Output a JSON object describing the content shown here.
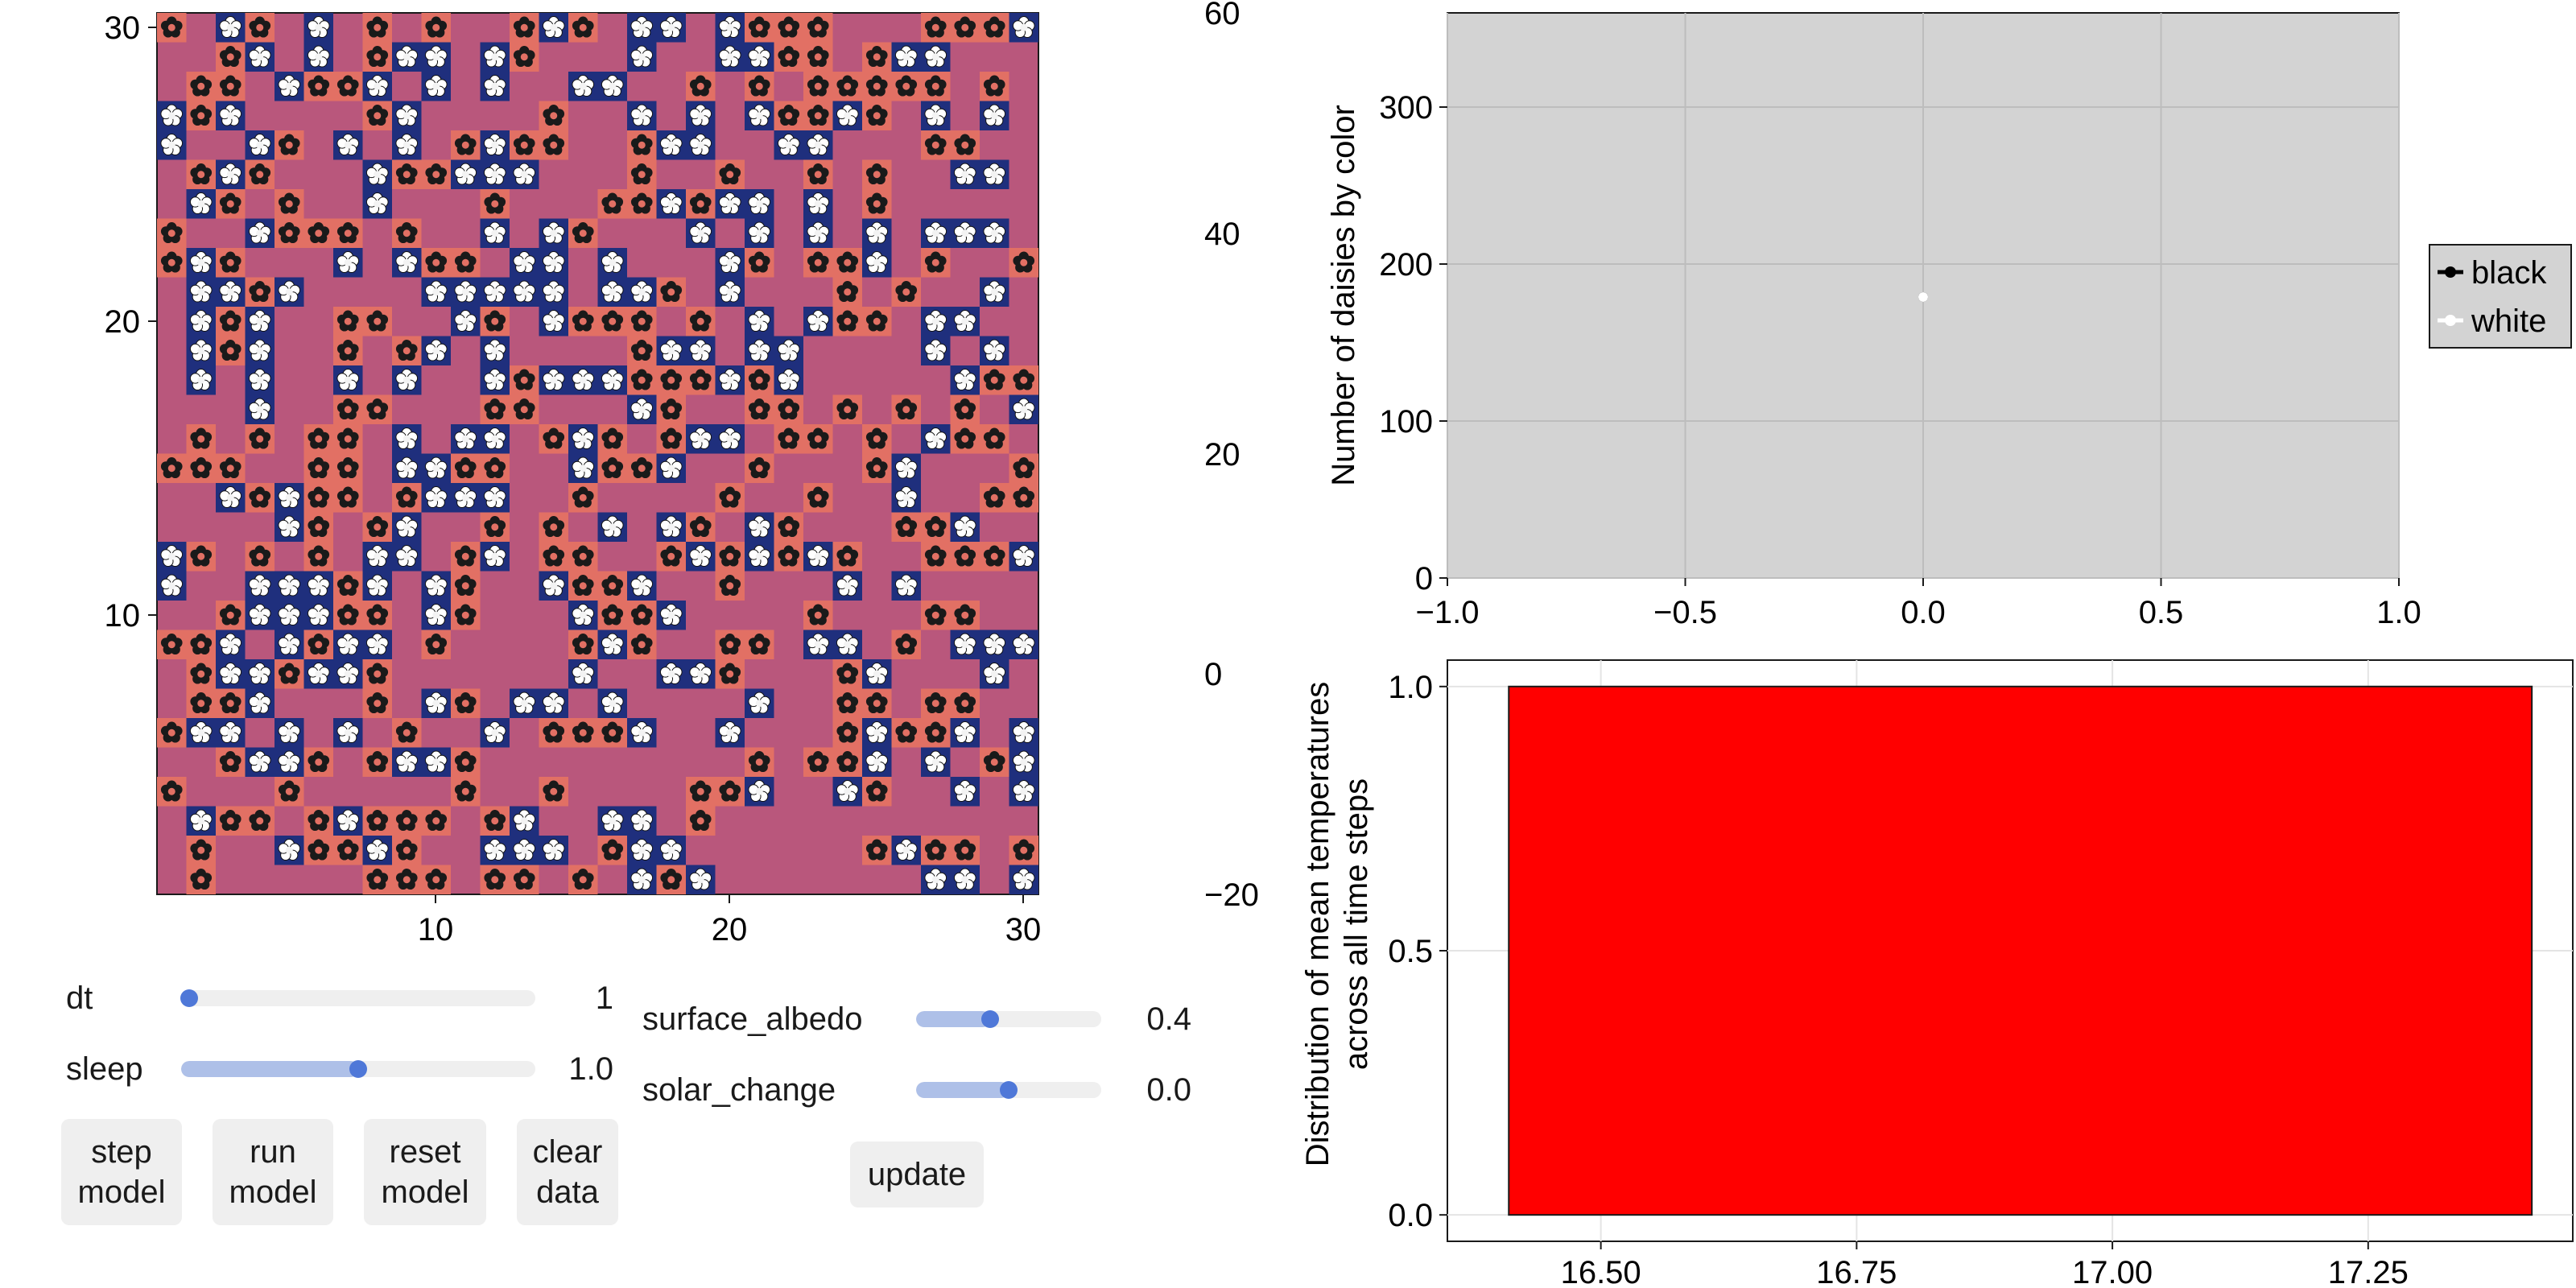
{
  "grid_plot": {
    "x_ticks": [
      "10",
      "20",
      "30"
    ],
    "y_ticks": [
      "10",
      "20",
      "30"
    ],
    "background_color": "#b9577c",
    "daisy_colors": {
      "black": "#1a1a1a",
      "white": "#ffffff"
    },
    "tile_colors": {
      "black": "#e27064",
      "white": "#1f2f7d"
    },
    "colorbar": {
      "ticks": [
        "−20",
        "0",
        "20",
        "40",
        "60"
      ],
      "min": -20,
      "max": 60
    }
  },
  "controls": {
    "sliders": [
      {
        "label": "dt",
        "value": "1",
        "fraction": 0.0
      },
      {
        "label": "sleep",
        "value": "1.0",
        "fraction": 0.5
      },
      {
        "label": "surface_albedo",
        "value": "0.4",
        "fraction": 0.4
      },
      {
        "label": "solar_change",
        "value": "0.0",
        "fraction": 0.5
      }
    ],
    "buttons": {
      "step": "step\nmodel",
      "run": "run\nmodel",
      "reset": "reset\nmodel",
      "clear": "clear\ndata",
      "update": "update"
    }
  },
  "chart_data": [
    {
      "type": "line",
      "ylabel": "Number of daisies by color",
      "xlim": [
        -1.0,
        1.0
      ],
      "ylim": [
        0,
        360
      ],
      "x_ticks": [
        "−1.0",
        "−0.5",
        "0.0",
        "0.5",
        "1.0"
      ],
      "y_ticks": [
        "0",
        "100",
        "200",
        "300"
      ],
      "grid": true,
      "legend": "right",
      "series": [
        {
          "name": "black",
          "color": "#000000",
          "x": [
            0.0
          ],
          "y": [
            179
          ]
        },
        {
          "name": "white",
          "color": "#ffffff",
          "x": [
            0.0
          ],
          "y": [
            179
          ]
        }
      ]
    },
    {
      "type": "bar",
      "ylabel_line1": "Distribution of mean temperatures",
      "ylabel_line2": "across all time steps",
      "xlim": [
        16.35,
        17.45
      ],
      "ylim": [
        -0.05,
        1.05
      ],
      "x_ticks": [
        "16.50",
        "16.75",
        "17.00",
        "17.25"
      ],
      "y_ticks": [
        "0.0",
        "0.5",
        "1.0"
      ],
      "grid": true,
      "bars": [
        {
          "x0": 16.41,
          "x1": 17.41,
          "value": 1.0,
          "color": "#ff0000"
        }
      ]
    }
  ]
}
